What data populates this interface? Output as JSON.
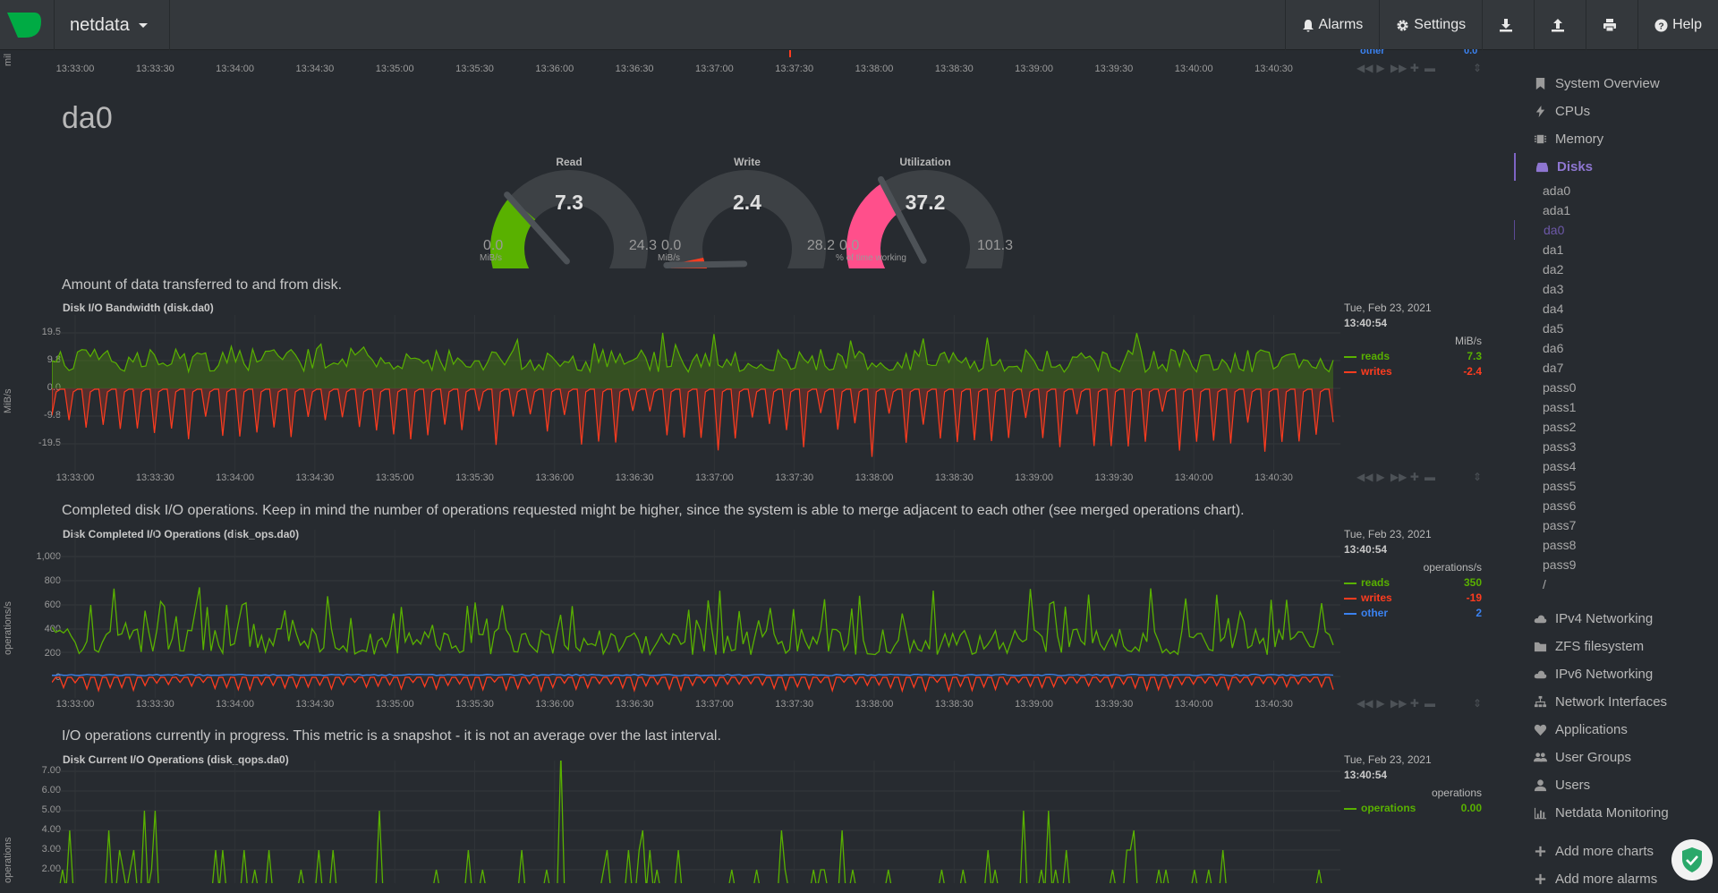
{
  "app": {
    "name": "netdata"
  },
  "nav": {
    "alarms": "Alarms",
    "settings": "Settings",
    "help": "Help",
    "download_icon": "download-icon",
    "upload_icon": "upload-icon",
    "print_icon": "print-icon"
  },
  "top_partial": {
    "side_label": "mil",
    "legend_fragment": "other",
    "legend_value": "0.0"
  },
  "time_ticks": [
    "13:33:00",
    "13:33:30",
    "13:34:00",
    "13:34:30",
    "13:35:00",
    "13:35:30",
    "13:36:00",
    "13:36:30",
    "13:37:00",
    "13:37:30",
    "13:38:00",
    "13:38:30",
    "13:39:00",
    "13:39:30",
    "13:40:00",
    "13:40:30"
  ],
  "page_title": "da0",
  "gauges": [
    {
      "title": "Read",
      "value": "7.3",
      "min": "0.0",
      "max": "24.3",
      "units": "MiB/s",
      "fraction": 0.3,
      "color": "#59b100"
    },
    {
      "title": "Write",
      "value": "2.4",
      "min": "0.0",
      "max": "28.2",
      "units": "MiB/s",
      "fraction": 0.085,
      "color": "#ff3c1f"
    },
    {
      "title": "Utilization",
      "value": "37.2",
      "min": "0.0",
      "max": "101.3",
      "units": "% of time working",
      "fraction": 0.367,
      "color": "#ff4f8b"
    }
  ],
  "charts": {
    "bandwidth": {
      "info": "Amount of data transferred to and from disk.",
      "title": "Disk I/O Bandwidth (disk.da0)",
      "yaxis_label": "MiB/s",
      "yticks": [
        "19.5",
        "9.8",
        "0.0",
        "-9.8",
        "-19.5"
      ],
      "date": "Tue, Feb 23, 2021",
      "time": "13:40:54",
      "units": "MiB/s",
      "legend": [
        {
          "name": "reads",
          "value": "7.3",
          "color": "#59b100"
        },
        {
          "name": "writes",
          "value": "-2.4",
          "color": "#ff3c1f"
        }
      ]
    },
    "ops": {
      "info": "Completed disk I/O operations. Keep in mind the number of operations requested might be higher, since the system is able to merge adjacent to each other (see merged operations chart).",
      "title": "Disk Completed I/O Operations (disk_ops.da0)",
      "yaxis_label": "operations/s",
      "yticks": [
        "1,000",
        "800",
        "600",
        "400",
        "200",
        "0"
      ],
      "date": "Tue, Feb 23, 2021",
      "time": "13:40:54",
      "units": "operations/s",
      "legend": [
        {
          "name": "reads",
          "value": "350",
          "color": "#59b100"
        },
        {
          "name": "writes",
          "value": "-19",
          "color": "#ff3c1f"
        },
        {
          "name": "other",
          "value": "2",
          "color": "#3b82f0"
        }
      ]
    },
    "qops": {
      "info": "I/O operations currently in progress. This metric is a snapshot - it is not an average over the last interval.",
      "title": "Disk Current I/O Operations (disk_qops.da0)",
      "yaxis_label": "operations",
      "yticks": [
        "7.00",
        "6.00",
        "5.00",
        "4.00",
        "3.00",
        "2.00"
      ],
      "date": "Tue, Feb 23, 2021",
      "time": "13:40:54",
      "units": "operations",
      "legend": [
        {
          "name": "operations",
          "value": "0.00",
          "color": "#59b100"
        }
      ]
    }
  },
  "sidebar": {
    "sections": [
      {
        "label": "System Overview",
        "icon": "bookmark-icon"
      },
      {
        "label": "CPUs",
        "icon": "bolt-icon"
      },
      {
        "label": "Memory",
        "icon": "microchip-icon"
      },
      {
        "label": "Disks",
        "icon": "hdd-icon",
        "active": true
      }
    ],
    "disks": [
      "ada0",
      "ada1",
      "da0",
      "da1",
      "da2",
      "da3",
      "da4",
      "da5",
      "da6",
      "da7",
      "pass0",
      "pass1",
      "pass2",
      "pass3",
      "pass4",
      "pass5",
      "pass6",
      "pass7",
      "pass8",
      "pass9",
      "/"
    ],
    "active_disk": "da0",
    "more_sections": [
      {
        "label": "IPv4 Networking",
        "icon": "cloud-icon"
      },
      {
        "label": "ZFS filesystem",
        "icon": "folder-icon"
      },
      {
        "label": "IPv6 Networking",
        "icon": "cloud-icon"
      },
      {
        "label": "Network Interfaces",
        "icon": "sitemap-icon"
      },
      {
        "label": "Applications",
        "icon": "heartbeat-icon"
      },
      {
        "label": "User Groups",
        "icon": "users-icon"
      },
      {
        "label": "Users",
        "icon": "user-icon"
      },
      {
        "label": "Netdata Monitoring",
        "icon": "bar-chart-icon"
      }
    ],
    "add_charts": "Add more charts",
    "add_alarms": "Add more alarms"
  }
}
